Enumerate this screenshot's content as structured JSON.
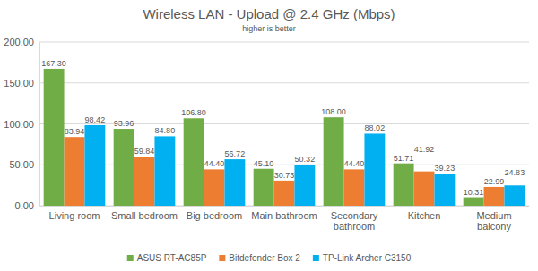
{
  "chart_data": {
    "type": "bar",
    "title": "Wireless LAN - Upload @ 2.4 GHz (Mbps)",
    "subtitle": "higher is better",
    "categories": [
      "Living room",
      "Small bedroom",
      "Big bedroom",
      "Main bathroom",
      "Secondary bathroom",
      "Kitchen",
      "Medium balcony"
    ],
    "series": [
      {
        "name": "ASUS RT-AC85P",
        "color": "#70ad47",
        "values": [
          167.3,
          93.96,
          106.8,
          45.1,
          108,
          51.71,
          10.31
        ],
        "value_labels": [
          "167.30",
          "93.96",
          "106.80",
          "45.10",
          "108.00",
          "51.71",
          "10.31"
        ]
      },
      {
        "name": "Bitdefender Box 2",
        "color": "#ed7d31",
        "values": [
          83.94,
          59.84,
          44.4,
          30.73,
          44.4,
          41.92,
          22.99
        ],
        "value_labels": [
          "83.94",
          "59.84",
          "44.40",
          "30.73",
          "44.40",
          "41.92",
          "22.99"
        ]
      },
      {
        "name": "TP-Link Archer C3150",
        "color": "#00b0f0",
        "values": [
          98.42,
          84.8,
          56.72,
          50.32,
          88.02,
          39.23,
          24.83
        ],
        "value_labels": [
          "98.42",
          "84.80",
          "56.72",
          "50.32",
          "88.02",
          "39.23",
          "24.83"
        ]
      }
    ],
    "ylim": [
      0,
      200
    ],
    "yticks": [
      {
        "value": 0,
        "label": "0.00"
      },
      {
        "value": 50,
        "label": "50.00"
      },
      {
        "value": 100,
        "label": "100.00"
      },
      {
        "value": 150,
        "label": "150.00"
      },
      {
        "value": 200,
        "label": "200.00"
      }
    ],
    "grid": true,
    "legend": "bottom",
    "data_labels": true
  }
}
